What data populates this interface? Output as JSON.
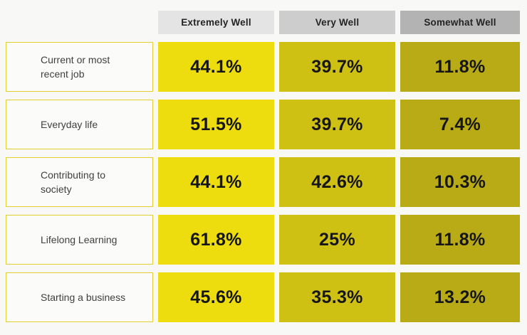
{
  "chart_data": {
    "type": "heatmap",
    "title": "",
    "columns": [
      "Extremely Well",
      "Very Well",
      "Somewhat Well"
    ],
    "rows": [
      "Current or most recent job",
      "Everyday life",
      "Contributing to society",
      "Lifelong Learning",
      "Starting a business"
    ],
    "values": [
      [
        44.1,
        39.7,
        11.8
      ],
      [
        51.5,
        39.7,
        7.4
      ],
      [
        44.1,
        42.6,
        10.3
      ],
      [
        61.8,
        25,
        11.8
      ],
      [
        45.6,
        35.3,
        13.2
      ]
    ],
    "value_labels": [
      [
        "44.1%",
        "39.7%",
        "11.8%"
      ],
      [
        "51.5%",
        "39.7%",
        "7.4%"
      ],
      [
        "44.1%",
        "42.6%",
        "10.3%"
      ],
      [
        "61.8%",
        "25%",
        "11.8%"
      ],
      [
        "45.6%",
        "35.3%",
        "13.2%"
      ]
    ],
    "unit": "%",
    "layout": "matrix of 5 rows x 3 columns, row labels on left, column headers on top, no gridlines, no legend"
  },
  "colors": {
    "cell_columns": [
      "#eedd0e",
      "#cfc014",
      "#b9ab15"
    ],
    "header_columns": [
      "#e4e4e4",
      "#cdcdcd",
      "#b3b3b3"
    ],
    "label_box_border": "#e5ce32",
    "label_box_bg": "#fbfbfa",
    "page_bg": "#f8f8f6",
    "value_text": "#161616",
    "label_text": "#3f3f3f",
    "header_text": "#242424"
  }
}
